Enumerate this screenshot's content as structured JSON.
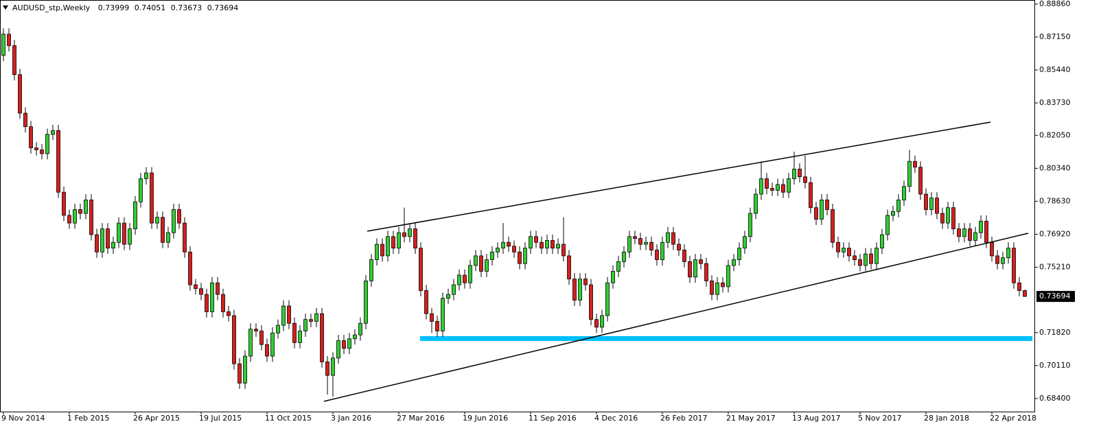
{
  "chart_data": {
    "type": "candlestick",
    "title": "AUDUSD_stp,Weekly",
    "up_color": "#33cc33",
    "down_color": "#d42020",
    "ylim": [
      0.6772,
      0.8907
    ],
    "yticks": [
      {
        "value": 0.8886,
        "label": "0.88860"
      },
      {
        "value": 0.8715,
        "label": "0.87150"
      },
      {
        "value": 0.8544,
        "label": "0.85440"
      },
      {
        "value": 0.8373,
        "label": "0.83730"
      },
      {
        "value": 0.8205,
        "label": "0.82050"
      },
      {
        "value": 0.8034,
        "label": "0.80340"
      },
      {
        "value": 0.7863,
        "label": "0.78630"
      },
      {
        "value": 0.7692,
        "label": "0.76920"
      },
      {
        "value": 0.7521,
        "label": "0.75210"
      },
      {
        "value": 0.7182,
        "label": "0.71820"
      },
      {
        "value": 0.7011,
        "label": "0.70110"
      },
      {
        "value": 0.684,
        "label": "0.68400"
      }
    ],
    "xtick_labels": [
      "9 Nov 2014",
      "1 Feb 2015",
      "26 Apr 2015",
      "19 Jul 2015",
      "11 Oct 2015",
      "3 Jan 2016",
      "27 Mar 2016",
      "19 Jun 2016",
      "11 Sep 2016",
      "4 Dec 2016",
      "26 Feb 2017",
      "21 May 2017",
      "13 Aug 2017",
      "5 Nov 2017",
      "28 Jan 2018",
      "22 Apr 2018"
    ],
    "open": [
      0.862,
      0.873,
      0.867,
      0.852,
      0.832,
      0.825,
      0.814,
      0.813,
      0.811,
      0.821,
      0.823,
      0.791,
      0.779,
      0.775,
      0.782,
      0.78,
      0.787,
      0.769,
      0.76,
      0.772,
      0.762,
      0.765,
      0.775,
      0.764,
      0.772,
      0.786,
      0.798,
      0.801,
      0.775,
      0.778,
      0.765,
      0.77,
      0.782,
      0.775,
      0.76,
      0.743,
      0.741,
      0.738,
      0.729,
      0.744,
      0.738,
      0.729,
      0.727,
      0.702,
      0.692,
      0.706,
      0.72,
      0.719,
      0.712,
      0.706,
      0.718,
      0.722,
      0.732,
      0.723,
      0.713,
      0.719,
      0.725,
      0.724,
      0.728,
      0.703,
      0.696,
      0.705,
      0.714,
      0.71,
      0.715,
      0.717,
      0.723,
      0.745,
      0.756,
      0.764,
      0.758,
      0.768,
      0.762,
      0.77,
      0.768,
      0.772,
      0.762,
      0.74,
      0.728,
      0.724,
      0.719,
      0.736,
      0.738,
      0.743,
      0.748,
      0.744,
      0.753,
      0.758,
      0.75,
      0.756,
      0.76,
      0.762,
      0.765,
      0.763,
      0.76,
      0.754,
      0.762,
      0.768,
      0.765,
      0.762,
      0.766,
      0.762,
      0.764,
      0.758,
      0.746,
      0.735,
      0.746,
      0.743,
      0.725,
      0.721,
      0.727,
      0.744,
      0.75,
      0.755,
      0.76,
      0.768,
      0.767,
      0.764,
      0.765,
      0.761,
      0.756,
      0.765,
      0.77,
      0.764,
      0.761,
      0.755,
      0.747,
      0.756,
      0.754,
      0.745,
      0.738,
      0.744,
      0.742,
      0.753,
      0.756,
      0.762,
      0.768,
      0.78,
      0.79,
      0.798,
      0.793,
      0.792,
      0.795,
      0.791,
      0.798,
      0.803,
      0.799,
      0.796,
      0.783,
      0.777,
      0.787,
      0.782,
      0.765,
      0.76,
      0.762,
      0.758,
      0.756,
      0.753,
      0.759,
      0.754,
      0.762,
      0.769,
      0.779,
      0.781,
      0.787,
      0.794,
      0.807,
      0.804,
      0.79,
      0.782,
      0.788,
      0.78,
      0.775,
      0.783,
      0.772,
      0.768,
      0.772,
      0.766,
      0.77,
      0.776,
      0.765,
      0.758,
      0.754,
      0.757,
      0.762,
      0.744,
      0.73999
    ],
    "high": [
      0.876,
      0.876,
      0.87,
      0.855,
      0.835,
      0.828,
      0.817,
      0.816,
      0.824,
      0.826,
      0.826,
      0.794,
      0.782,
      0.785,
      0.785,
      0.79,
      0.79,
      0.772,
      0.775,
      0.775,
      0.768,
      0.778,
      0.778,
      0.775,
      0.789,
      0.801,
      0.804,
      0.804,
      0.781,
      0.781,
      0.773,
      0.785,
      0.785,
      0.778,
      0.763,
      0.746,
      0.744,
      0.741,
      0.747,
      0.747,
      0.741,
      0.732,
      0.73,
      0.705,
      0.709,
      0.723,
      0.723,
      0.722,
      0.715,
      0.721,
      0.725,
      0.735,
      0.735,
      0.726,
      0.722,
      0.728,
      0.728,
      0.731,
      0.731,
      0.706,
      0.708,
      0.717,
      0.717,
      0.718,
      0.72,
      0.726,
      0.748,
      0.759,
      0.767,
      0.767,
      0.771,
      0.771,
      0.773,
      0.783,
      0.775,
      0.775,
      0.765,
      0.743,
      0.731,
      0.727,
      0.739,
      0.741,
      0.746,
      0.751,
      0.751,
      0.756,
      0.761,
      0.761,
      0.759,
      0.763,
      0.765,
      0.775,
      0.768,
      0.766,
      0.763,
      0.765,
      0.771,
      0.771,
      0.768,
      0.769,
      0.769,
      0.767,
      0.778,
      0.761,
      0.749,
      0.749,
      0.749,
      0.746,
      0.728,
      0.73,
      0.747,
      0.753,
      0.758,
      0.763,
      0.771,
      0.771,
      0.77,
      0.768,
      0.768,
      0.764,
      0.768,
      0.773,
      0.773,
      0.767,
      0.764,
      0.758,
      0.759,
      0.759,
      0.757,
      0.748,
      0.747,
      0.747,
      0.756,
      0.759,
      0.765,
      0.771,
      0.783,
      0.793,
      0.807,
      0.801,
      0.796,
      0.798,
      0.798,
      0.801,
      0.812,
      0.806,
      0.81,
      0.799,
      0.786,
      0.79,
      0.79,
      0.785,
      0.768,
      0.765,
      0.765,
      0.761,
      0.759,
      0.762,
      0.762,
      0.765,
      0.772,
      0.782,
      0.784,
      0.79,
      0.797,
      0.813,
      0.81,
      0.807,
      0.793,
      0.791,
      0.791,
      0.783,
      0.786,
      0.786,
      0.775,
      0.775,
      0.775,
      0.773,
      0.779,
      0.779,
      0.768,
      0.761,
      0.76,
      0.765,
      0.765,
      0.747,
      0.74051
    ],
    "low": [
      0.859,
      0.864,
      0.849,
      0.829,
      0.822,
      0.811,
      0.81,
      0.808,
      0.808,
      0.818,
      0.788,
      0.776,
      0.772,
      0.772,
      0.777,
      0.777,
      0.766,
      0.757,
      0.757,
      0.759,
      0.759,
      0.762,
      0.761,
      0.761,
      0.769,
      0.783,
      0.795,
      0.772,
      0.772,
      0.762,
      0.762,
      0.767,
      0.772,
      0.757,
      0.74,
      0.738,
      0.735,
      0.726,
      0.726,
      0.735,
      0.726,
      0.724,
      0.699,
      0.689,
      0.689,
      0.703,
      0.716,
      0.709,
      0.703,
      0.703,
      0.715,
      0.719,
      0.72,
      0.71,
      0.71,
      0.716,
      0.721,
      0.721,
      0.7,
      0.686,
      0.685,
      0.702,
      0.707,
      0.707,
      0.712,
      0.714,
      0.72,
      0.742,
      0.753,
      0.755,
      0.755,
      0.759,
      0.759,
      0.765,
      0.765,
      0.759,
      0.737,
      0.725,
      0.718,
      0.716,
      0.716,
      0.733,
      0.735,
      0.74,
      0.741,
      0.741,
      0.75,
      0.747,
      0.747,
      0.753,
      0.757,
      0.759,
      0.76,
      0.757,
      0.751,
      0.751,
      0.759,
      0.762,
      0.759,
      0.759,
      0.759,
      0.759,
      0.755,
      0.743,
      0.732,
      0.732,
      0.74,
      0.722,
      0.718,
      0.718,
      0.724,
      0.741,
      0.747,
      0.752,
      0.757,
      0.764,
      0.761,
      0.761,
      0.758,
      0.753,
      0.753,
      0.762,
      0.761,
      0.758,
      0.752,
      0.744,
      0.744,
      0.751,
      0.742,
      0.735,
      0.735,
      0.739,
      0.739,
      0.75,
      0.753,
      0.759,
      0.765,
      0.777,
      0.787,
      0.79,
      0.789,
      0.789,
      0.788,
      0.788,
      0.795,
      0.796,
      0.793,
      0.78,
      0.774,
      0.774,
      0.779,
      0.762,
      0.757,
      0.757,
      0.755,
      0.753,
      0.75,
      0.75,
      0.751,
      0.751,
      0.759,
      0.766,
      0.776,
      0.778,
      0.784,
      0.791,
      0.801,
      0.787,
      0.779,
      0.779,
      0.777,
      0.772,
      0.772,
      0.769,
      0.765,
      0.765,
      0.763,
      0.763,
      0.767,
      0.762,
      0.755,
      0.751,
      0.751,
      0.754,
      0.741,
      0.737,
      0.73673
    ],
    "close": [
      0.873,
      0.867,
      0.852,
      0.832,
      0.825,
      0.814,
      0.813,
      0.811,
      0.821,
      0.823,
      0.791,
      0.779,
      0.775,
      0.782,
      0.78,
      0.787,
      0.769,
      0.76,
      0.772,
      0.762,
      0.765,
      0.775,
      0.764,
      0.772,
      0.786,
      0.798,
      0.801,
      0.775,
      0.778,
      0.765,
      0.77,
      0.782,
      0.775,
      0.76,
      0.743,
      0.741,
      0.738,
      0.729,
      0.744,
      0.738,
      0.729,
      0.727,
      0.702,
      0.692,
      0.706,
      0.72,
      0.719,
      0.712,
      0.706,
      0.718,
      0.722,
      0.732,
      0.723,
      0.713,
      0.719,
      0.725,
      0.724,
      0.728,
      0.703,
      0.696,
      0.705,
      0.714,
      0.71,
      0.715,
      0.717,
      0.723,
      0.745,
      0.756,
      0.764,
      0.758,
      0.768,
      0.762,
      0.77,
      0.768,
      0.772,
      0.762,
      0.74,
      0.728,
      0.724,
      0.719,
      0.736,
      0.738,
      0.743,
      0.748,
      0.744,
      0.753,
      0.758,
      0.75,
      0.756,
      0.76,
      0.762,
      0.765,
      0.763,
      0.76,
      0.754,
      0.762,
      0.768,
      0.765,
      0.762,
      0.766,
      0.762,
      0.764,
      0.758,
      0.746,
      0.735,
      0.746,
      0.743,
      0.725,
      0.721,
      0.727,
      0.744,
      0.75,
      0.755,
      0.76,
      0.768,
      0.767,
      0.764,
      0.765,
      0.761,
      0.756,
      0.765,
      0.77,
      0.764,
      0.761,
      0.755,
      0.747,
      0.756,
      0.754,
      0.745,
      0.738,
      0.744,
      0.742,
      0.753,
      0.756,
      0.762,
      0.768,
      0.78,
      0.79,
      0.798,
      0.793,
      0.792,
      0.795,
      0.791,
      0.798,
      0.803,
      0.799,
      0.796,
      0.783,
      0.777,
      0.787,
      0.782,
      0.765,
      0.76,
      0.762,
      0.758,
      0.756,
      0.753,
      0.759,
      0.754,
      0.762,
      0.769,
      0.779,
      0.781,
      0.787,
      0.794,
      0.807,
      0.804,
      0.79,
      0.782,
      0.788,
      0.78,
      0.775,
      0.783,
      0.772,
      0.768,
      0.772,
      0.766,
      0.77,
      0.776,
      0.765,
      0.758,
      0.754,
      0.757,
      0.762,
      0.744,
      0.74,
      0.73694
    ]
  }
}
